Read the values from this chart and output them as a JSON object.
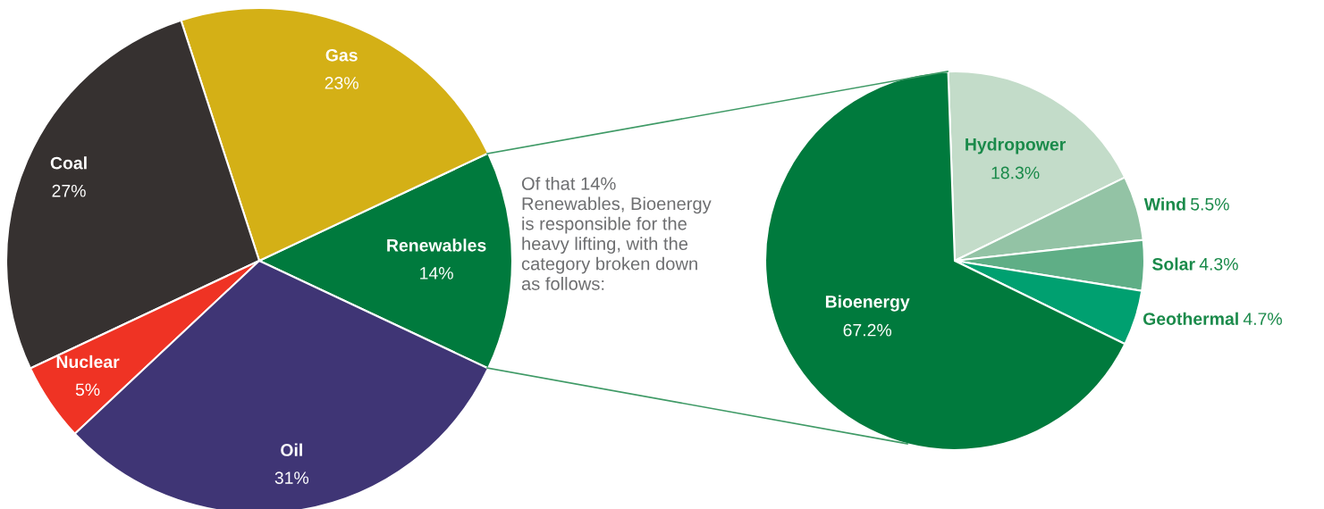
{
  "chart_data": [
    {
      "type": "pie",
      "categories": [
        "Renewables",
        "Gas",
        "Coal",
        "Nuclear",
        "Oil"
      ],
      "values": [
        14,
        23,
        27,
        5,
        31
      ],
      "value_labels": [
        "14%",
        "23%",
        "27%",
        "5%",
        "31%"
      ],
      "colors": [
        "#007a3d",
        "#d4b016",
        "#363130",
        "#ef3324",
        "#3f3575"
      ]
    },
    {
      "type": "pie",
      "categories": [
        "Hydropower",
        "Wind",
        "Solar",
        "Geothermal",
        "Bioenergy"
      ],
      "values": [
        18.3,
        5.5,
        4.3,
        4.7,
        67.2
      ],
      "value_labels": [
        "18.3%",
        "5.5%",
        "4.3%",
        "4.7%",
        "67.2%"
      ],
      "colors": [
        "#c3dcc9",
        "#93c3a5",
        "#5fae86",
        "#00a070",
        "#007a3d"
      ],
      "annotations": [
        "Of that 14%\nRenewables, Bioenergy\nis responsible for the\nheavy lifting, with the\ncategory broken down\nas follows:"
      ]
    }
  ]
}
